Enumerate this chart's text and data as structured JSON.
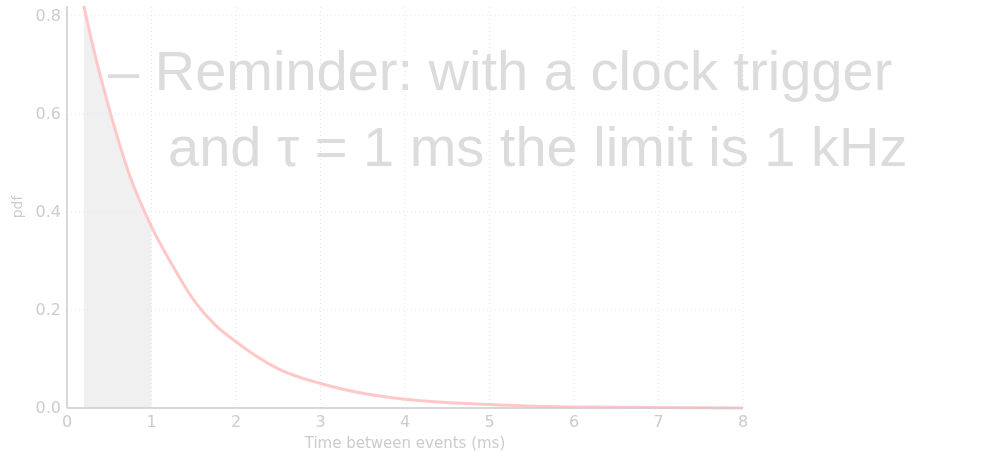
{
  "chart_data": {
    "type": "line",
    "xlabel": "Time between events (ms)",
    "ylabel": "pdf",
    "xlim": [
      0,
      8
    ],
    "ylim": [
      0,
      0.82
    ],
    "xticks": [
      0,
      1,
      2,
      3,
      4,
      5,
      6,
      7,
      8
    ],
    "yticks": [
      {
        "value": 0,
        "label": "0.0"
      },
      {
        "value": 0.2,
        "label": "0.2"
      },
      {
        "value": 0.4,
        "label": "0.4"
      },
      {
        "value": 0.6,
        "label": "0.6"
      },
      {
        "value": 0.8,
        "label": "0.8"
      }
    ],
    "grid": true,
    "series": [
      {
        "type": "area",
        "color": "#f0f0f0",
        "x": [
          0.2,
          0.25,
          0.5,
          0.75,
          1
        ],
        "values": [
          0.82,
          0.78,
          0.61,
          0.47,
          0.37
        ]
      },
      {
        "color": "#ffc8c8",
        "x": [
          0.2,
          0.25,
          0.5,
          0.75,
          1,
          1.25,
          1.5,
          1.75,
          2,
          2.5,
          3,
          3.5,
          4,
          4.5,
          5,
          6,
          7,
          8
        ],
        "values": [
          0.82,
          0.78,
          0.61,
          0.47,
          0.37,
          0.29,
          0.22,
          0.17,
          0.135,
          0.08,
          0.05,
          0.03,
          0.018,
          0.011,
          0.007,
          0.002,
          0.001,
          0
        ]
      }
    ],
    "annotations": [
      "– Reminder: with a clock trigger",
      "and τ = 1 ms the limit is 1 kHz"
    ]
  }
}
